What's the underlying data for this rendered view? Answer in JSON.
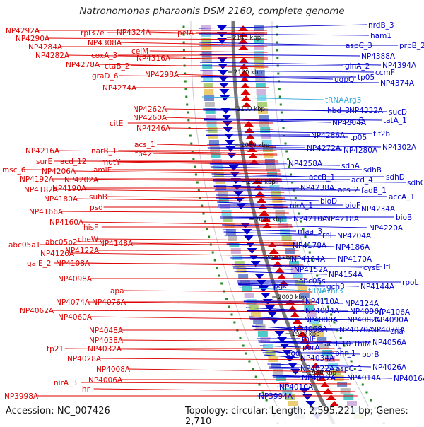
{
  "title": "Natronomonas pharaonis DSM 2160, complete genome",
  "footer": {
    "accession": "Accession: NC_007426",
    "topology": "Topology: circular; Length: 2,595,221 bp; Genes: 2,710"
  },
  "colors": {
    "left_genes": "#dd0000",
    "right_genes": "#0000cc",
    "rna_genes": "#33aadd",
    "backbone": "#777777",
    "gc_dots": "#228822"
  },
  "ticks": [
    "2140 kbp",
    "2120 kbp",
    "2100 kbp",
    "2080 kbp",
    "2060 kbp",
    "2040 kbp",
    "2020 kbp",
    "2000 kbp",
    "1980 kbp",
    "1960 kbp"
  ],
  "left_labels": [
    "NP4292A",
    "rpl37e",
    "NP4324A",
    "pelA",
    "NP4290A",
    "NP4308A",
    "NP4284A",
    "celM",
    "NP4282A",
    "coxA_3",
    "NP4316A",
    "NP4278A",
    "ctaB_2",
    "graD_6",
    "NP4298A",
    "NP4274A",
    "NP4262A",
    "NP4260A",
    "citE",
    "NP4246A",
    "acs_1",
    "narB_1",
    "tp42",
    "NP4216A",
    "surE",
    "acd_12",
    "mutY",
    "amiE",
    "msc_6",
    "NP4206A",
    "NP4192A",
    "NP4202A",
    "NP4182A",
    "NP4190A",
    "suhB",
    "NP4180A",
    "psd",
    "NP4166A",
    "NP4160A",
    "hisF",
    "cheW",
    "NP4148A",
    "abc05a1",
    "abc05p2",
    "NP4126A",
    "NP4122A",
    "galE_2",
    "NP4108A",
    "NP4098A",
    "apa",
    "NP4074A",
    "NP4076A",
    "NP4062A",
    "NP4060A",
    "NP4048A",
    "NP4038A",
    "tp21",
    "NP4032A",
    "NP4028A",
    "NP4008A",
    "NP4006A",
    "nirA_3",
    "lhr",
    "NP3998A"
  ],
  "right_labels": [
    "nrdB_3",
    "ham1",
    "aspC_3",
    "prpB_2",
    "NP4388A",
    "NP4394A",
    "glnA_2",
    "ccmF",
    "ugpQ",
    "tp05",
    "NP4374A",
    "tRNAArg3",
    "hbd_3",
    "NP4332A",
    "sucD",
    "panB",
    "tatA_1",
    "NP4304A",
    "NP4286A",
    "tp05",
    "tif2b",
    "NP4272A",
    "NP4280A",
    "NP4302A",
    "NP4258A",
    "sdhA",
    "sdhB",
    "sdhD",
    "sdhC",
    "accB_1",
    "acd_4",
    "NP4238A",
    "acs_2",
    "fadB_1",
    "accA_1",
    "bioD",
    "bioF",
    "NP4234A",
    "nirA_1",
    "NP4210A",
    "NP4218A",
    "NP4220A",
    "bioB",
    "maa_3",
    "rhl",
    "NP4204A",
    "NP4178A",
    "NP4186A",
    "NP4164A",
    "NP4170A",
    "cysE",
    "lfl",
    "NP4152A",
    "NP4154A",
    "abc05s",
    "gch3",
    "NP4144A",
    "rpoL",
    "pgk",
    "tRNAThr3",
    "NP4110A",
    "NP4124A",
    "NP4094A",
    "NP4096A",
    "NP4106A",
    "NP4080A",
    "NP4082A",
    "NP4090A",
    "NP4068A",
    "NP4070A",
    "cna",
    "NP4078A",
    "thiE",
    "acd_10",
    "thiM",
    "NP4056A",
    "porA",
    "sod",
    "phr_1",
    "porB",
    "NP4034A",
    "NP4022A",
    "aspC_1",
    "NP4026A",
    "NP4012A",
    "NP4014A",
    "NP4016A",
    "NP4010A",
    "NP3994A"
  ]
}
